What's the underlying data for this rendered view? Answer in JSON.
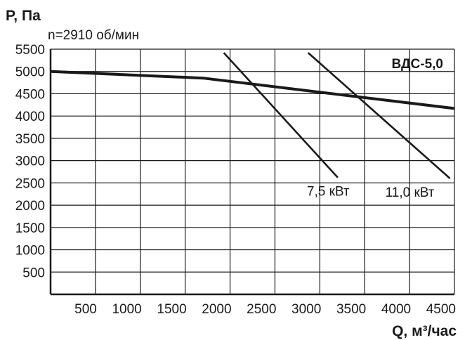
{
  "chart_data": {
    "type": "line",
    "title": "",
    "ylabel": "P, Па",
    "xlabel": "Q, м³/час",
    "speed_note": "n=2910 об/мин",
    "model_label": "ВДС-5,0",
    "xlim": [
      0,
      4500
    ],
    "ylim": [
      0,
      5500
    ],
    "x_ticks": [
      500,
      1000,
      1500,
      2000,
      2500,
      3000,
      3500,
      4000,
      4500
    ],
    "y_ticks": [
      500,
      1000,
      1500,
      2000,
      2500,
      3000,
      3500,
      4000,
      4500,
      5000,
      5500
    ],
    "grid": true,
    "series": [
      {
        "name": "",
        "role": "fan-curve",
        "x": [
          0,
          1700,
          4500
        ],
        "y": [
          5000,
          4850,
          4170
        ]
      },
      {
        "name": "7,5 кВт",
        "role": "power-line",
        "x": [
          1930,
          3200
        ],
        "y": [
          5420,
          2620
        ]
      },
      {
        "name": "11,0 кВт",
        "role": "power-line",
        "x": [
          2870,
          4450
        ],
        "y": [
          5420,
          2600
        ]
      }
    ]
  },
  "colors": {
    "line": "#1a1a1a",
    "grid": "#1a1a1a",
    "background": "#ffffff"
  }
}
